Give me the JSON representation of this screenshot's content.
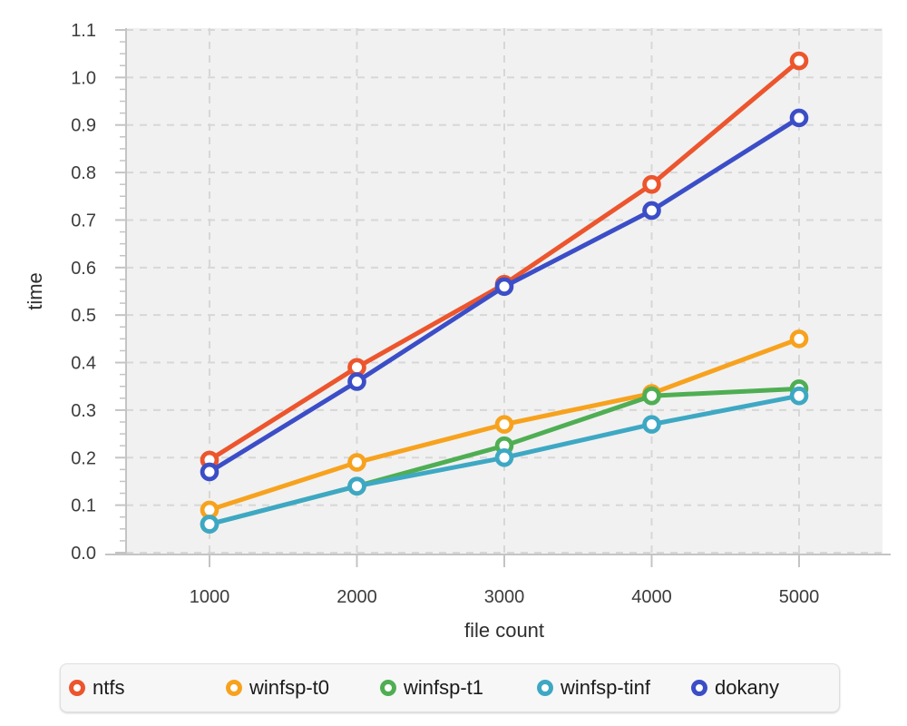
{
  "chart_data": {
    "type": "line",
    "title": "",
    "xlabel": "file count",
    "ylabel": "time",
    "x": [
      1000,
      2000,
      3000,
      4000,
      5000
    ],
    "x_tick_labels": [
      "1000",
      "2000",
      "3000",
      "4000",
      "5000"
    ],
    "y_tick_labels": [
      "0.0",
      "0.1",
      "0.2",
      "0.3",
      "0.4",
      "0.5",
      "0.6",
      "0.7",
      "0.8",
      "0.9",
      "1.0",
      "1.1"
    ],
    "ylim": [
      0.0,
      1.1
    ],
    "ytick_step": 0.1,
    "yminor_step": 0.025,
    "grid": "dashed",
    "legend_position": "bottom",
    "series": [
      {
        "name": "ntfs",
        "color": "#EC552D",
        "values": [
          0.195,
          0.39,
          0.565,
          0.775,
          1.035
        ]
      },
      {
        "name": "winfsp-t0",
        "color": "#F7A21E",
        "values": [
          0.09,
          0.19,
          0.27,
          0.335,
          0.45
        ]
      },
      {
        "name": "winfsp-t1",
        "color": "#4FAE53",
        "values": [
          0.06,
          0.14,
          0.225,
          0.33,
          0.345
        ]
      },
      {
        "name": "winfsp-tinf",
        "color": "#3EA8C4",
        "values": [
          0.06,
          0.14,
          0.2,
          0.27,
          0.33
        ]
      },
      {
        "name": "dokany",
        "color": "#3B4EC7",
        "values": [
          0.17,
          0.36,
          0.56,
          0.72,
          0.915
        ]
      }
    ],
    "styles": {
      "plot_bg": "#F1F1F1",
      "grid_color": "#D7D7D7",
      "axis_color": "#C4C4C4",
      "tick_label_color": "#3C3C3C",
      "axis_title_color": "#2E2E2E",
      "legend_text_color": "#1A1A1A",
      "marker_fill": "#FFFFFF"
    }
  }
}
